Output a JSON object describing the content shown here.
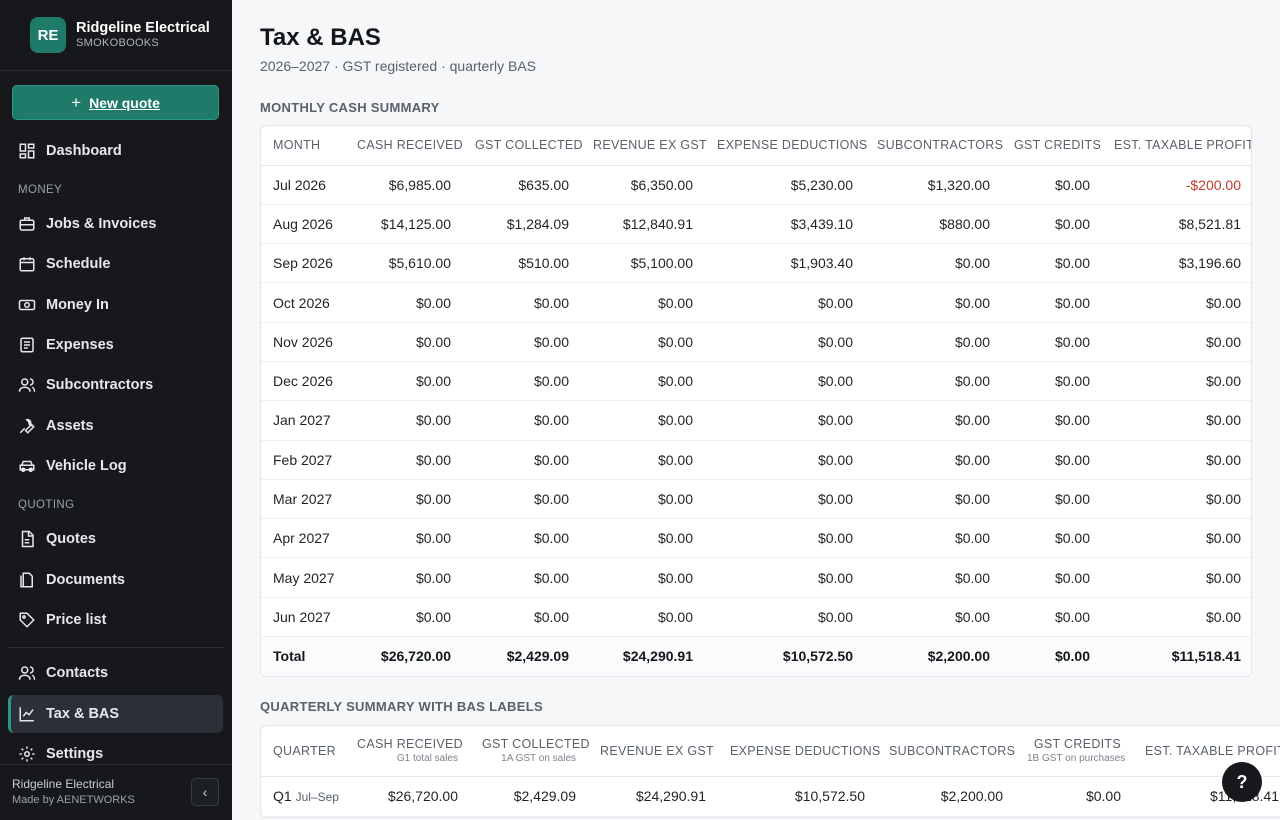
{
  "brand": {
    "initials": "RE",
    "name": "Ridgeline Electrical",
    "sub": "SMOKOBOOKS"
  },
  "sidebar": {
    "new_quote_label": "New quote",
    "items": [
      {
        "label": "Dashboard",
        "icon": "dashboard-icon"
      },
      {
        "label": "Jobs & Invoices",
        "icon": "briefcase-icon"
      },
      {
        "label": "Schedule",
        "icon": "calendar-icon"
      },
      {
        "label": "Money In",
        "icon": "money-icon"
      },
      {
        "label": "Expenses",
        "icon": "receipt-icon"
      },
      {
        "label": "Subcontractors",
        "icon": "users-icon"
      },
      {
        "label": "Assets",
        "icon": "wrench-icon"
      },
      {
        "label": "Vehicle Log",
        "icon": "car-icon"
      },
      {
        "label": "Quotes",
        "icon": "file-icon"
      },
      {
        "label": "Documents",
        "icon": "documents-icon"
      },
      {
        "label": "Price list",
        "icon": "tag-icon"
      },
      {
        "label": "Contacts",
        "icon": "contacts-icon"
      },
      {
        "label": "Tax & BAS",
        "icon": "chart-line-icon"
      },
      {
        "label": "Settings",
        "icon": "gear-icon"
      }
    ],
    "sections": {
      "money": "MONEY",
      "quoting": "QUOTING"
    },
    "footer": {
      "company": "Ridgeline Electrical",
      "made_by": "Made by AENETWORKS"
    }
  },
  "page": {
    "title": "Tax & BAS",
    "subtitle": "2026–2027 · GST registered · quarterly BAS"
  },
  "monthly": {
    "title": "MONTHLY CASH SUMMARY",
    "headers": [
      "MONTH",
      "CASH RECEIVED",
      "GST COLLECTED",
      "REVENUE EX GST",
      "EXPENSE DEDUCTIONS",
      "SUBCONTRACTORS",
      "GST CREDITS",
      "EST. TAXABLE PROFIT"
    ],
    "rows": [
      [
        "Jul 2026",
        "$6,985.00",
        "$635.00",
        "$6,350.00",
        "$5,230.00",
        "$1,320.00",
        "$0.00",
        "-$200.00"
      ],
      [
        "Aug 2026",
        "$14,125.00",
        "$1,284.09",
        "$12,840.91",
        "$3,439.10",
        "$880.00",
        "$0.00",
        "$8,521.81"
      ],
      [
        "Sep 2026",
        "$5,610.00",
        "$510.00",
        "$5,100.00",
        "$1,903.40",
        "$0.00",
        "$0.00",
        "$3,196.60"
      ],
      [
        "Oct 2026",
        "$0.00",
        "$0.00",
        "$0.00",
        "$0.00",
        "$0.00",
        "$0.00",
        "$0.00"
      ],
      [
        "Nov 2026",
        "$0.00",
        "$0.00",
        "$0.00",
        "$0.00",
        "$0.00",
        "$0.00",
        "$0.00"
      ],
      [
        "Dec 2026",
        "$0.00",
        "$0.00",
        "$0.00",
        "$0.00",
        "$0.00",
        "$0.00",
        "$0.00"
      ],
      [
        "Jan 2027",
        "$0.00",
        "$0.00",
        "$0.00",
        "$0.00",
        "$0.00",
        "$0.00",
        "$0.00"
      ],
      [
        "Feb 2027",
        "$0.00",
        "$0.00",
        "$0.00",
        "$0.00",
        "$0.00",
        "$0.00",
        "$0.00"
      ],
      [
        "Mar 2027",
        "$0.00",
        "$0.00",
        "$0.00",
        "$0.00",
        "$0.00",
        "$0.00",
        "$0.00"
      ],
      [
        "Apr 2027",
        "$0.00",
        "$0.00",
        "$0.00",
        "$0.00",
        "$0.00",
        "$0.00",
        "$0.00"
      ],
      [
        "May 2027",
        "$0.00",
        "$0.00",
        "$0.00",
        "$0.00",
        "$0.00",
        "$0.00",
        "$0.00"
      ],
      [
        "Jun 2027",
        "$0.00",
        "$0.00",
        "$0.00",
        "$0.00",
        "$0.00",
        "$0.00",
        "$0.00"
      ]
    ],
    "total": [
      "Total",
      "$26,720.00",
      "$2,429.09",
      "$24,290.91",
      "$10,572.50",
      "$2,200.00",
      "$0.00",
      "$11,518.41"
    ]
  },
  "quarterly": {
    "title": "QUARTERLY SUMMARY WITH BAS LABELS",
    "headers": [
      {
        "label": "QUARTER",
        "sub": ""
      },
      {
        "label": "CASH RECEIVED",
        "sub": "G1 total sales"
      },
      {
        "label": "GST COLLECTED",
        "sub": "1A GST on sales"
      },
      {
        "label": "REVENUE EX GST",
        "sub": ""
      },
      {
        "label": "EXPENSE DEDUCTIONS",
        "sub": ""
      },
      {
        "label": "SUBCONTRACTORS",
        "sub": ""
      },
      {
        "label": "GST CREDITS",
        "sub": "1B GST on purchases"
      },
      {
        "label": "EST. TAXABLE PROFIT",
        "sub": ""
      }
    ],
    "rows": [
      {
        "quarter": "Q1",
        "range": "Jul–Sep",
        "values": [
          "$26,720.00",
          "$2,429.09",
          "$24,290.91",
          "$10,572.50",
          "$2,200.00",
          "$0.00",
          "$11,518.41"
        ]
      }
    ]
  },
  "help_label": "?"
}
